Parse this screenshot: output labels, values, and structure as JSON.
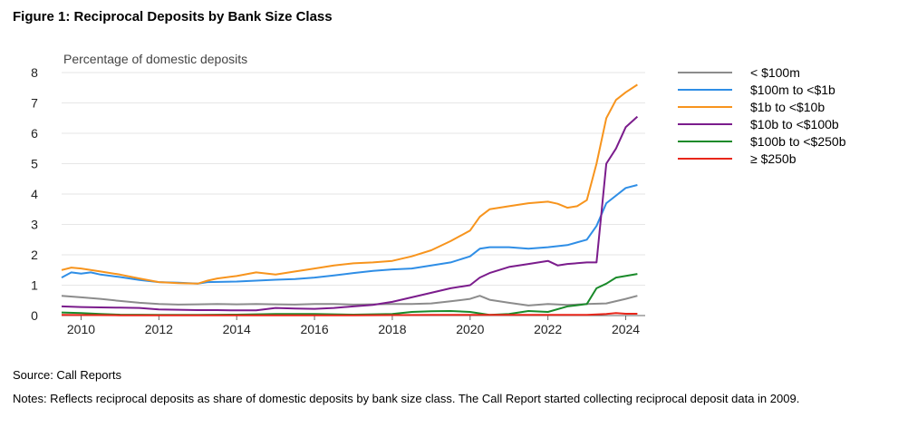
{
  "title": "Figure 1: Reciprocal Deposits by Bank Size Class",
  "source": "Source: Call Reports",
  "notes": "Notes: Reflects reciprocal deposits as share of domestic deposits by bank size class. The Call Report started collecting reciprocal deposit data in 2009.",
  "chart_data": {
    "type": "line",
    "title": "Figure 1: Reciprocal Deposits by Bank Size Class",
    "ylabel": "Percentage of domestic deposits",
    "xlabel": "",
    "xlim": [
      2009.5,
      2024.5
    ],
    "ylim": [
      0,
      8
    ],
    "xticks": [
      2010,
      2012,
      2014,
      2016,
      2018,
      2020,
      2022,
      2024
    ],
    "yticks": [
      0,
      1,
      2,
      3,
      4,
      5,
      6,
      7,
      8
    ],
    "legend_position": "right",
    "series": [
      {
        "name": "< $100m",
        "color": "#8c8c8c",
        "points": [
          [
            2009.5,
            0.65
          ],
          [
            2010.0,
            0.6
          ],
          [
            2010.5,
            0.55
          ],
          [
            2011.0,
            0.48
          ],
          [
            2011.5,
            0.42
          ],
          [
            2012.0,
            0.38
          ],
          [
            2012.5,
            0.36
          ],
          [
            2013.0,
            0.37
          ],
          [
            2013.5,
            0.38
          ],
          [
            2014.0,
            0.37
          ],
          [
            2014.5,
            0.38
          ],
          [
            2015.0,
            0.37
          ],
          [
            2015.5,
            0.36
          ],
          [
            2016.0,
            0.38
          ],
          [
            2016.5,
            0.38
          ],
          [
            2017.0,
            0.36
          ],
          [
            2017.5,
            0.37
          ],
          [
            2018.0,
            0.38
          ],
          [
            2018.5,
            0.38
          ],
          [
            2019.0,
            0.4
          ],
          [
            2019.5,
            0.47
          ],
          [
            2020.0,
            0.55
          ],
          [
            2020.25,
            0.65
          ],
          [
            2020.5,
            0.52
          ],
          [
            2021.0,
            0.42
          ],
          [
            2021.5,
            0.33
          ],
          [
            2022.0,
            0.38
          ],
          [
            2022.5,
            0.35
          ],
          [
            2023.0,
            0.38
          ],
          [
            2023.5,
            0.4
          ],
          [
            2024.0,
            0.55
          ],
          [
            2024.3,
            0.65
          ]
        ]
      },
      {
        "name": "$100m to <$1b",
        "color": "#2f8ee6",
        "points": [
          [
            2009.5,
            1.25
          ],
          [
            2009.75,
            1.42
          ],
          [
            2010.0,
            1.38
          ],
          [
            2010.25,
            1.42
          ],
          [
            2010.5,
            1.35
          ],
          [
            2011.0,
            1.27
          ],
          [
            2011.5,
            1.17
          ],
          [
            2012.0,
            1.1
          ],
          [
            2012.5,
            1.08
          ],
          [
            2013.0,
            1.05
          ],
          [
            2013.25,
            1.1
          ],
          [
            2014.0,
            1.12
          ],
          [
            2014.5,
            1.15
          ],
          [
            2015.0,
            1.18
          ],
          [
            2015.5,
            1.2
          ],
          [
            2016.0,
            1.25
          ],
          [
            2016.5,
            1.32
          ],
          [
            2017.0,
            1.4
          ],
          [
            2017.5,
            1.47
          ],
          [
            2018.0,
            1.52
          ],
          [
            2018.5,
            1.55
          ],
          [
            2019.0,
            1.65
          ],
          [
            2019.5,
            1.75
          ],
          [
            2020.0,
            1.95
          ],
          [
            2020.25,
            2.2
          ],
          [
            2020.5,
            2.25
          ],
          [
            2021.0,
            2.25
          ],
          [
            2021.5,
            2.2
          ],
          [
            2022.0,
            2.25
          ],
          [
            2022.5,
            2.32
          ],
          [
            2023.0,
            2.5
          ],
          [
            2023.25,
            2.95
          ],
          [
            2023.5,
            3.7
          ],
          [
            2024.0,
            4.2
          ],
          [
            2024.3,
            4.3
          ]
        ]
      },
      {
        "name": "$1b to <$10b",
        "color": "#f7941d",
        "points": [
          [
            2009.5,
            1.5
          ],
          [
            2009.75,
            1.58
          ],
          [
            2010.0,
            1.55
          ],
          [
            2010.5,
            1.45
          ],
          [
            2011.0,
            1.35
          ],
          [
            2011.5,
            1.22
          ],
          [
            2012.0,
            1.1
          ],
          [
            2012.5,
            1.07
          ],
          [
            2013.0,
            1.05
          ],
          [
            2013.25,
            1.15
          ],
          [
            2013.5,
            1.22
          ],
          [
            2014.0,
            1.3
          ],
          [
            2014.5,
            1.42
          ],
          [
            2015.0,
            1.35
          ],
          [
            2015.5,
            1.45
          ],
          [
            2016.0,
            1.55
          ],
          [
            2016.5,
            1.65
          ],
          [
            2017.0,
            1.72
          ],
          [
            2017.5,
            1.75
          ],
          [
            2018.0,
            1.8
          ],
          [
            2018.5,
            1.95
          ],
          [
            2019.0,
            2.15
          ],
          [
            2019.5,
            2.45
          ],
          [
            2020.0,
            2.8
          ],
          [
            2020.25,
            3.25
          ],
          [
            2020.5,
            3.5
          ],
          [
            2021.0,
            3.6
          ],
          [
            2021.5,
            3.7
          ],
          [
            2022.0,
            3.75
          ],
          [
            2022.25,
            3.68
          ],
          [
            2022.5,
            3.55
          ],
          [
            2022.75,
            3.6
          ],
          [
            2023.0,
            3.8
          ],
          [
            2023.25,
            5.0
          ],
          [
            2023.5,
            6.5
          ],
          [
            2023.75,
            7.1
          ],
          [
            2024.0,
            7.35
          ],
          [
            2024.3,
            7.6
          ]
        ]
      },
      {
        "name": "$10b to <$100b",
        "color": "#7b1c8c",
        "points": [
          [
            2009.5,
            0.3
          ],
          [
            2010.0,
            0.28
          ],
          [
            2010.5,
            0.27
          ],
          [
            2011.0,
            0.26
          ],
          [
            2011.5,
            0.25
          ],
          [
            2012.0,
            0.2
          ],
          [
            2012.5,
            0.19
          ],
          [
            2013.0,
            0.18
          ],
          [
            2013.5,
            0.18
          ],
          [
            2014.0,
            0.17
          ],
          [
            2014.5,
            0.17
          ],
          [
            2015.0,
            0.25
          ],
          [
            2015.5,
            0.23
          ],
          [
            2016.0,
            0.22
          ],
          [
            2016.5,
            0.25
          ],
          [
            2017.0,
            0.3
          ],
          [
            2017.5,
            0.35
          ],
          [
            2018.0,
            0.45
          ],
          [
            2018.5,
            0.6
          ],
          [
            2019.0,
            0.75
          ],
          [
            2019.5,
            0.9
          ],
          [
            2020.0,
            1.0
          ],
          [
            2020.25,
            1.25
          ],
          [
            2020.5,
            1.4
          ],
          [
            2021.0,
            1.6
          ],
          [
            2021.5,
            1.7
          ],
          [
            2022.0,
            1.8
          ],
          [
            2022.25,
            1.65
          ],
          [
            2022.5,
            1.7
          ],
          [
            2023.0,
            1.75
          ],
          [
            2023.25,
            1.75
          ],
          [
            2023.5,
            5.0
          ],
          [
            2023.75,
            5.5
          ],
          [
            2024.0,
            6.2
          ],
          [
            2024.3,
            6.55
          ]
        ]
      },
      {
        "name": "$100b to <$250b",
        "color": "#1a8a2a",
        "points": [
          [
            2009.5,
            0.1
          ],
          [
            2010.0,
            0.08
          ],
          [
            2010.5,
            0.05
          ],
          [
            2011.0,
            0.03
          ],
          [
            2012.0,
            0.02
          ],
          [
            2013.0,
            0.02
          ],
          [
            2014.0,
            0.03
          ],
          [
            2015.0,
            0.05
          ],
          [
            2016.0,
            0.05
          ],
          [
            2017.0,
            0.03
          ],
          [
            2018.0,
            0.05
          ],
          [
            2018.5,
            0.12
          ],
          [
            2019.0,
            0.14
          ],
          [
            2019.5,
            0.15
          ],
          [
            2020.0,
            0.12
          ],
          [
            2020.5,
            0.02
          ],
          [
            2021.0,
            0.05
          ],
          [
            2021.5,
            0.15
          ],
          [
            2022.0,
            0.12
          ],
          [
            2022.5,
            0.3
          ],
          [
            2023.0,
            0.38
          ],
          [
            2023.25,
            0.9
          ],
          [
            2023.5,
            1.05
          ],
          [
            2023.75,
            1.25
          ],
          [
            2024.3,
            1.37
          ]
        ]
      },
      {
        "name": "≥ $250b",
        "color": "#e8261a",
        "points": [
          [
            2009.5,
            0.02
          ],
          [
            2011.0,
            0.01
          ],
          [
            2013.0,
            0.01
          ],
          [
            2015.0,
            0.01
          ],
          [
            2017.0,
            0.01
          ],
          [
            2019.0,
            0.02
          ],
          [
            2021.0,
            0.02
          ],
          [
            2022.5,
            0.02
          ],
          [
            2023.0,
            0.02
          ],
          [
            2023.5,
            0.05
          ],
          [
            2023.75,
            0.08
          ],
          [
            2024.0,
            0.06
          ],
          [
            2024.3,
            0.06
          ]
        ]
      }
    ]
  }
}
